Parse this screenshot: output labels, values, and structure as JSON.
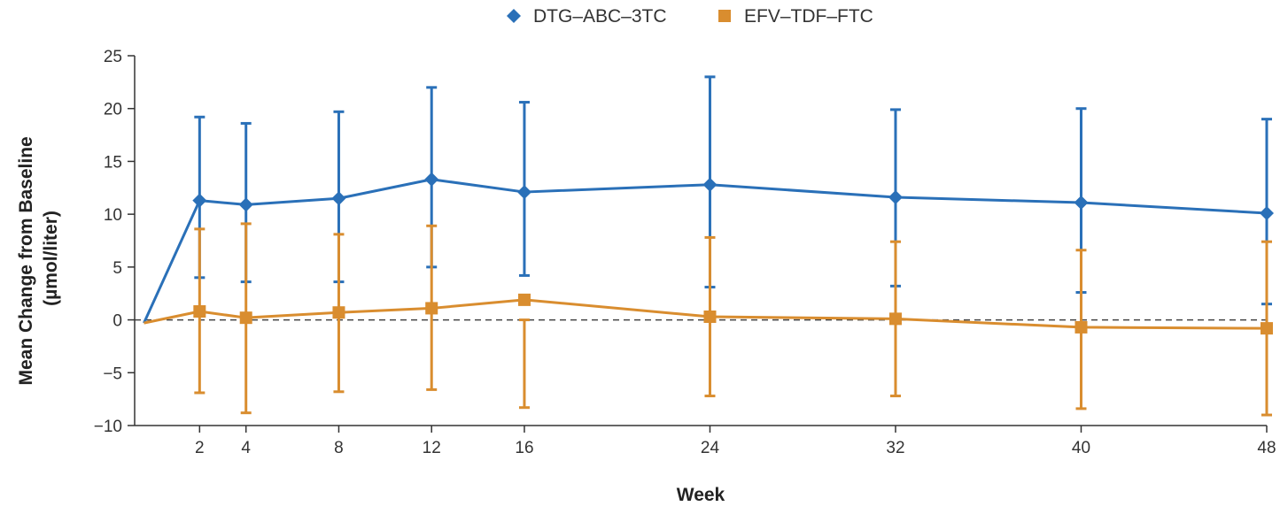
{
  "chart_data": {
    "type": "line",
    "title": "",
    "xlabel": "Week",
    "ylabel": "Mean Change from Baseline",
    "ylabel_unit": "(µmol/liter)",
    "xlim": [
      -0.8,
      48
    ],
    "ylim": [
      -10,
      25
    ],
    "x_ticks": [
      2,
      4,
      8,
      12,
      16,
      24,
      32,
      40,
      48
    ],
    "y_ticks": [
      -10,
      -5,
      0,
      5,
      10,
      15,
      20,
      25
    ],
    "x_tick_labels": [
      "2",
      "4",
      "8",
      "12",
      "16",
      "24",
      "32",
      "40",
      "48"
    ],
    "y_tick_labels": [
      "−10",
      "−5",
      "0",
      "5",
      "10",
      "15",
      "20",
      "25"
    ],
    "reference_line": 0,
    "legend_position": "top-center",
    "series": [
      {
        "name": "DTG–ABC–3TC",
        "color": "#2a70b8",
        "marker": "diamond",
        "start": {
          "x": -0.4,
          "y": -0.3
        },
        "x": [
          2,
          4,
          8,
          12,
          16,
          24,
          32,
          40,
          48
        ],
        "y": [
          11.3,
          10.9,
          11.5,
          13.3,
          12.1,
          12.8,
          11.6,
          11.1,
          10.1
        ],
        "err_upper": [
          19.2,
          18.6,
          19.7,
          22.0,
          20.6,
          23.0,
          19.9,
          20.0,
          19.0
        ],
        "err_lower": [
          4.0,
          3.6,
          3.6,
          5.0,
          4.2,
          3.1,
          3.2,
          2.6,
          1.5
        ]
      },
      {
        "name": "EFV–TDF–FTC",
        "color": "#d98d2f",
        "marker": "square",
        "start": {
          "x": -0.4,
          "y": -0.3
        },
        "x": [
          2,
          4,
          8,
          12,
          16,
          24,
          32,
          40,
          48
        ],
        "y": [
          0.8,
          0.2,
          0.7,
          1.1,
          1.9,
          0.3,
          0.1,
          -0.7,
          -0.8
        ],
        "err_upper": [
          8.6,
          9.1,
          8.1,
          8.9,
          0,
          7.8,
          7.4,
          6.6,
          7.4
        ],
        "err_lower": [
          -6.9,
          -8.8,
          -6.8,
          -6.6,
          -8.3,
          -7.2,
          -7.2,
          -8.4,
          -9.0
        ]
      }
    ]
  }
}
